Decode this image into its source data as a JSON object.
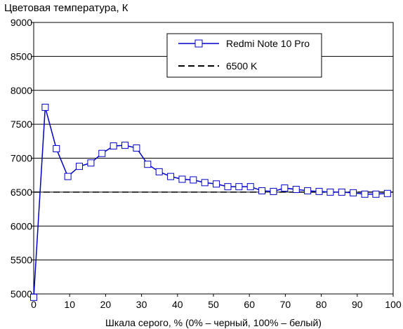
{
  "chart_data": {
    "type": "line",
    "ylabel": "Цветовая температура, К",
    "xlabel": "Шкала серого, % (0% – черный, 100% – белый)",
    "xlim": [
      0,
      100
    ],
    "ylim": [
      5000,
      9000
    ],
    "x_ticks": [
      0,
      10,
      20,
      30,
      40,
      50,
      60,
      70,
      80,
      90,
      100
    ],
    "y_ticks": [
      5000,
      5500,
      6000,
      6500,
      7000,
      7500,
      8000,
      8500,
      9000
    ],
    "grid": "horizontal",
    "legend_position": "top-right",
    "colors": {
      "series": "#0000cc",
      "reference": "#000000",
      "marker_fill": "#ffffff"
    },
    "series": [
      {
        "name": "Redmi Note 10 Pro",
        "style": "line-square-markers",
        "x": [
          0,
          3.2,
          6.3,
          9.5,
          12.7,
          15.9,
          19.0,
          22.2,
          25.4,
          28.6,
          31.7,
          34.9,
          38.1,
          41.3,
          44.4,
          47.6,
          50.8,
          54.0,
          57.1,
          60.3,
          63.5,
          66.7,
          69.8,
          73.0,
          76.2,
          79.4,
          82.5,
          85.7,
          88.9,
          92.1,
          95.2,
          98.4
        ],
        "y": [
          4950,
          7750,
          7140,
          6730,
          6880,
          6930,
          7070,
          7180,
          7190,
          7150,
          6910,
          6800,
          6730,
          6690,
          6680,
          6640,
          6620,
          6580,
          6580,
          6580,
          6520,
          6510,
          6560,
          6540,
          6520,
          6510,
          6500,
          6500,
          6490,
          6470,
          6470,
          6480
        ]
      },
      {
        "name": "6500 K",
        "style": "dashed",
        "x": [
          0,
          100
        ],
        "y": [
          6500,
          6500
        ]
      }
    ]
  }
}
